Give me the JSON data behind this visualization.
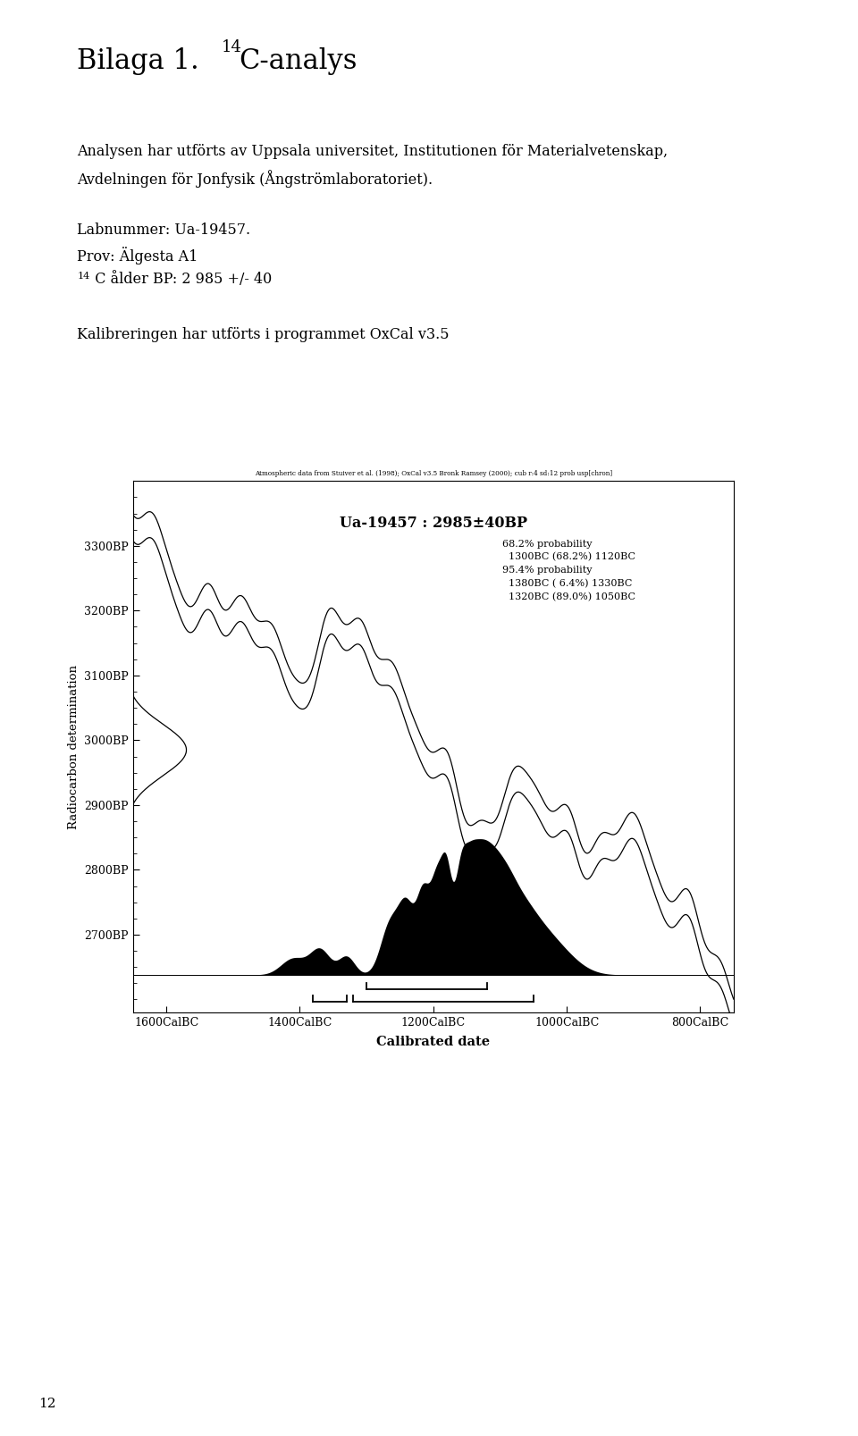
{
  "page_title_base": "Bilaga 1. ",
  "page_title_sup": "14",
  "page_title_rest": "C-analys",
  "body_text_line1": "Analysen har utförts av Uppsala universitet, Institutionen för Materialvetenskap,",
  "body_text_line2": "Avdelningen för Jonfysik (Ångströmlaboratoriet).",
  "lab_line1": "Labnummer: Ua-19457.",
  "lab_line2": "Prov: Älgesta A1",
  "lab_line3_pre": "  C ålder BP: 2 985 +/- 40",
  "lab_line3_sup": "14",
  "kalib_line": "Kalibreringen har utförts i programmet OxCal v3.5",
  "atm_caption": "Atmospheric data from Stuiver et al. (1998); OxCal v3.5 Bronk Ramsey (2000); cub r:4 sd:12 prob usp[chron]",
  "chart_title": "Ua-19457 : 2985±40BP",
  "ylabel": "Radiocarbon determination",
  "xlabel": "Calibrated date",
  "yticks": [
    2700,
    2800,
    2900,
    3000,
    3100,
    3200,
    3300
  ],
  "ytick_labels": [
    "2700BP",
    "2800BP",
    "2900BP",
    "3000BP",
    "3100BP",
    "3200BP",
    "3300BP"
  ],
  "xtick_labels": [
    "1600CalBC",
    "1400CalBC",
    "1200CalBC",
    "1000CalBC",
    "800CalBC"
  ],
  "xtick_values": [
    1600,
    1400,
    1200,
    1000,
    800
  ],
  "prob_text_lines": [
    "68.2% probability",
    "  1300BC (68.2%) 1120BC",
    "95.4% probability",
    "  1380BC ( 6.4%) 1330BC",
    "  1320BC (89.0%) 1050BC"
  ],
  "page_num": "12",
  "background_color": "#ffffff"
}
